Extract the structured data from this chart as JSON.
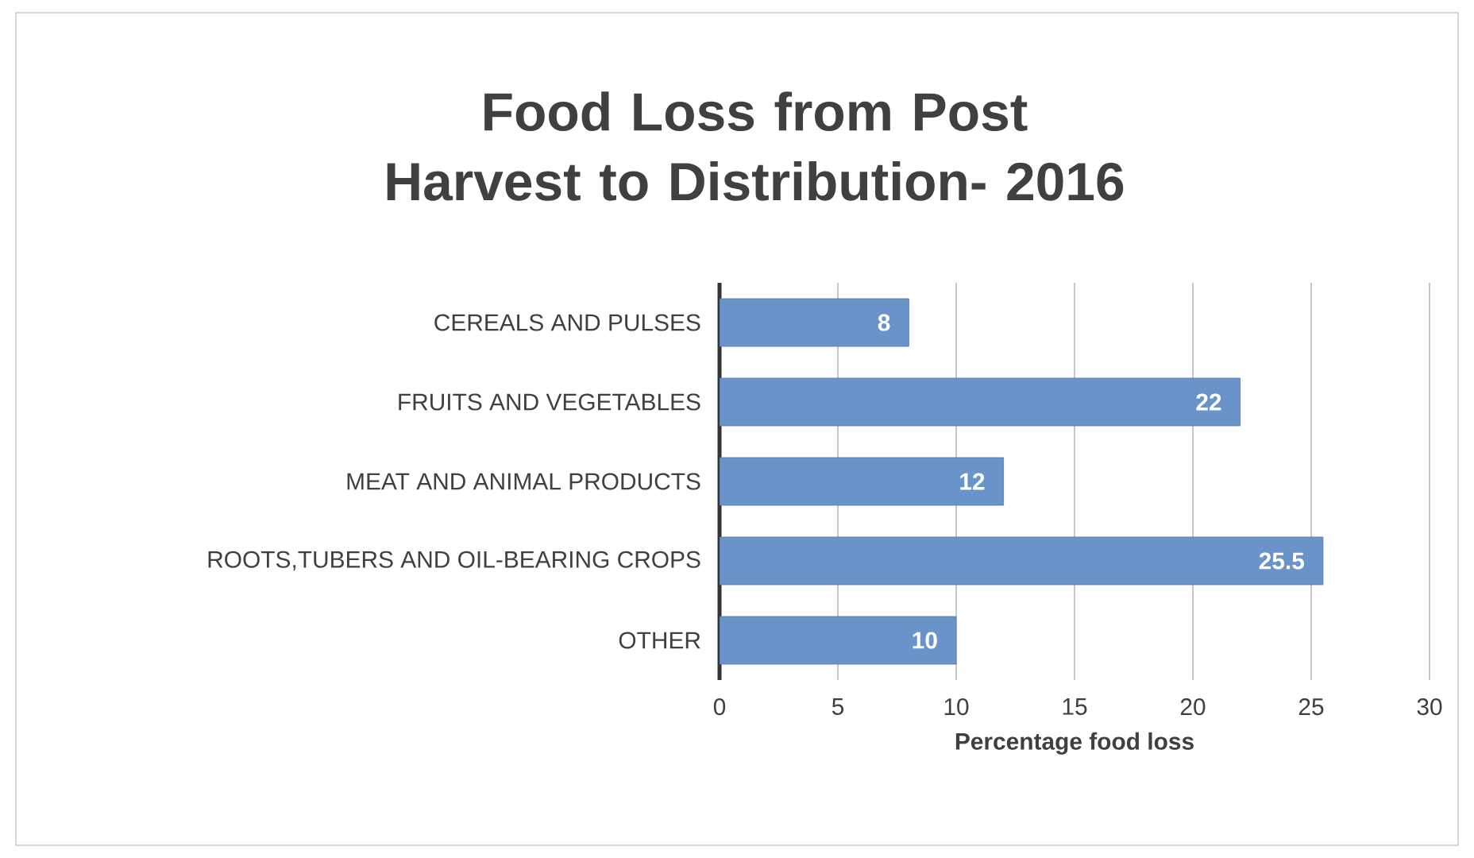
{
  "chart_data": {
    "type": "bar",
    "orientation": "horizontal",
    "title": "Food Loss from Post Harvest to Distribution- 2016",
    "xlabel": "Percentage food loss",
    "categories": [
      "CEREALS AND PULSES",
      "FRUITS AND VEGETABLES",
      "MEAT AND ANIMAL PRODUCTS",
      "ROOTS,TUBERS AND OIL-BEARING CROPS",
      "OTHER"
    ],
    "values": [
      8,
      22,
      12,
      25.5,
      10
    ],
    "color": "#6a93c9",
    "xlim": [
      0,
      30
    ],
    "xticks": [
      0,
      5,
      10,
      15,
      20,
      25,
      30
    ],
    "grid": "x",
    "data_labels": true
  }
}
